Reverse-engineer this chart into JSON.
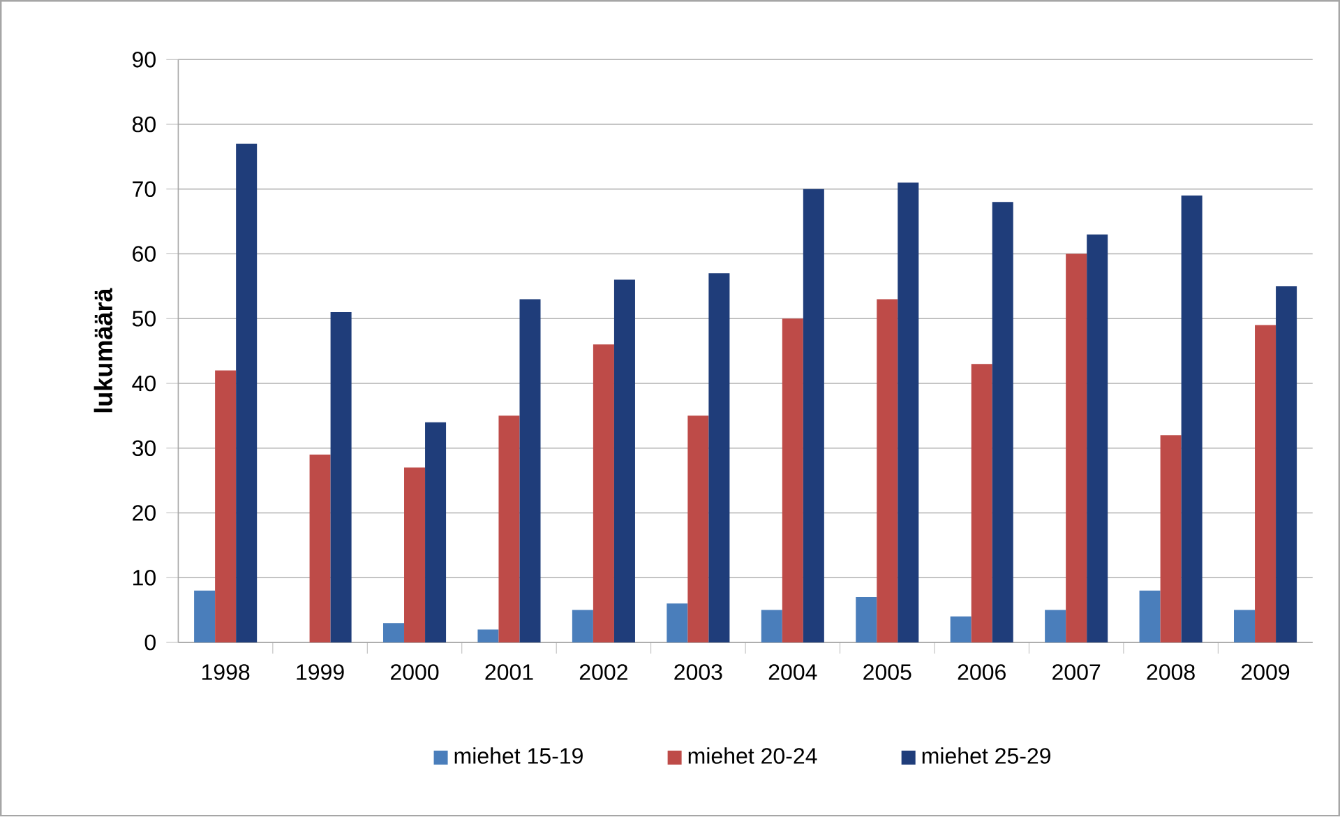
{
  "chart_data": {
    "type": "bar",
    "ylabel": "lukumäärä",
    "categories": [
      "1998",
      "1999",
      "2000",
      "2001",
      "2002",
      "2003",
      "2004",
      "2005",
      "2006",
      "2007",
      "2008",
      "2009"
    ],
    "series": [
      {
        "name": "miehet 15-19",
        "color": "#4a7ebb",
        "values": [
          8,
          0,
          3,
          2,
          5,
          6,
          5,
          7,
          4,
          5,
          8,
          5
        ]
      },
      {
        "name": "miehet 20-24",
        "color": "#be4b48",
        "values": [
          42,
          29,
          27,
          35,
          46,
          35,
          50,
          53,
          43,
          60,
          32,
          49
        ]
      },
      {
        "name": "miehet 25-29",
        "color": "#1f3d7a",
        "values": [
          77,
          51,
          34,
          53,
          56,
          57,
          70,
          71,
          68,
          63,
          69,
          55
        ]
      }
    ],
    "ylim": [
      0,
      90
    ],
    "yticks": [
      0,
      10,
      20,
      30,
      40,
      50,
      60,
      70,
      80,
      90
    ],
    "grid": "y",
    "legend": "bottom"
  }
}
